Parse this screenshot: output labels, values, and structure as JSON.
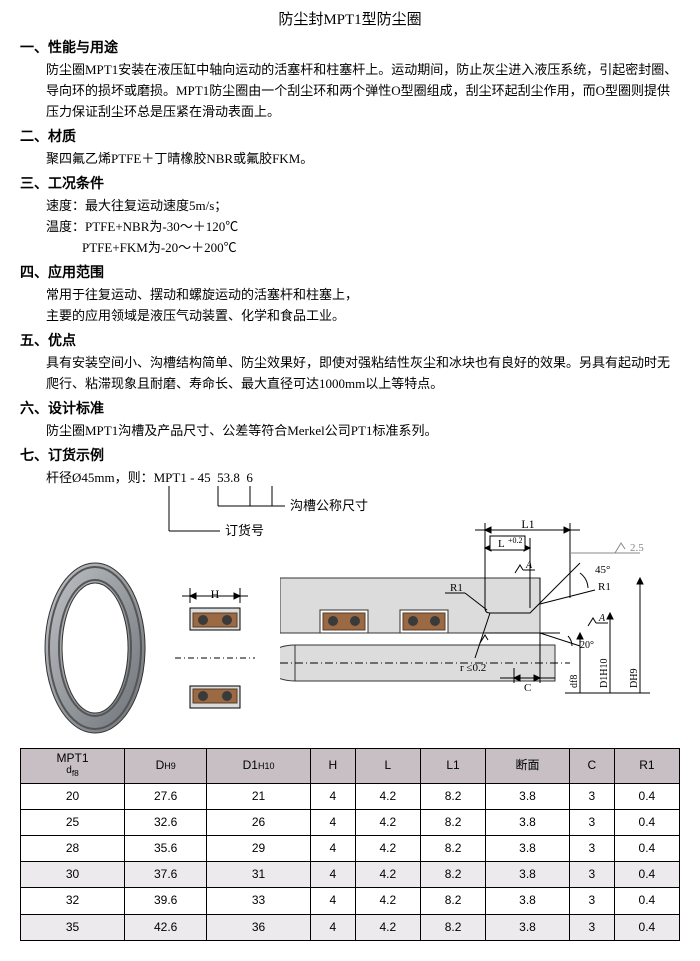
{
  "title": "防尘封MPT1型防尘圈",
  "sections": {
    "s1": {
      "head": "一、性能与用途",
      "body": "防尘圈MPT1安装在液压缸中轴向运动的活塞杆和柱塞杆上。运动期间，防止灰尘进入液压系统，引起密封圈、导向环的损坏或磨损。MPT1防尘圈由一个刮尘环和两个弹性O型圈组成，刮尘环起刮尘作用，而O型圈则提供压力保证刮尘环总是压紧在滑动表面上。"
    },
    "s2": {
      "head": "二、材质",
      "body": "聚四氟乙烯PTFE＋丁晴橡胶NBR或氟胶FKM。"
    },
    "s3": {
      "head": "三、工况条件",
      "l1": "速度：最大往复运动速度5m/s；",
      "l2": "温度：PTFE+NBR为-30～＋120℃",
      "l3": "PTFE+FKM为-20～＋200℃"
    },
    "s4": {
      "head": "四、应用范围",
      "l1": "常用于往复运动、摆动和螺旋运动的活塞杆和柱塞上，",
      "l2": "主要的应用领域是液压气动装置、化学和食品工业。"
    },
    "s5": {
      "head": "五、优点",
      "body": "具有安装空间小、沟槽结构简单、防尘效果好，即使对强粘结性灰尘和冰块也有良好的效果。另具有起动时无爬行、粘滞现象且耐磨、寿命长、最大直径可达1000mm以上等特点。"
    },
    "s6": {
      "head": "六、设计标准",
      "body": "防尘圈MPT1沟槽及产品尺寸、公差等符合Merkel公司PT1标准系列。"
    },
    "s7": {
      "head": "七、订货示例",
      "line": "杆径Ø45mm，则：MPT1 - 45  53.8  6",
      "label_groove": "沟槽公称尺寸",
      "label_order": "订货号"
    }
  },
  "diagram": {
    "H": "H",
    "L1": "L1",
    "L": "L",
    "Ltol": "+0.2",
    "R1a": "R1",
    "R1b": "R1",
    "r": "r ≤0.2",
    "C": "C",
    "ang45": "45°",
    "ang20": "20°",
    "roughA": "A",
    "roughA2": "A",
    "rough25": "2.5",
    "df8": "df8",
    "D1H10": "D1H10",
    "DH9": "DH9",
    "colors": {
      "steel": "#9aa0a6",
      "steel_dark": "#6d7278",
      "seal_body": "#9b6a45",
      "seal_edge": "#5a3c24",
      "oring": "#3a3a3a",
      "dim": "#000000",
      "bg": "#ffffff"
    }
  },
  "table": {
    "headers": [
      "MPT1\ndf8",
      "DH9",
      "D1H10",
      "H",
      "L",
      "L1",
      "断面",
      "C",
      "R1"
    ],
    "rows": [
      [
        "20",
        "27.6",
        "21",
        "4",
        "4.2",
        "8.2",
        "3.8",
        "3",
        "0.4"
      ],
      [
        "25",
        "32.6",
        "26",
        "4",
        "4.2",
        "8.2",
        "3.8",
        "3",
        "0.4"
      ],
      [
        "28",
        "35.6",
        "29",
        "4",
        "4.2",
        "8.2",
        "3.8",
        "3",
        "0.4"
      ],
      [
        "30",
        "37.6",
        "31",
        "4",
        "4.2",
        "8.2",
        "3.8",
        "3",
        "0.4"
      ],
      [
        "32",
        "39.6",
        "33",
        "4",
        "4.2",
        "8.2",
        "3.8",
        "3",
        "0.4"
      ],
      [
        "35",
        "42.6",
        "36",
        "4",
        "4.2",
        "8.2",
        "3.8",
        "3",
        "0.4"
      ]
    ],
    "shaded_rows": [
      0,
      2,
      4
    ]
  }
}
